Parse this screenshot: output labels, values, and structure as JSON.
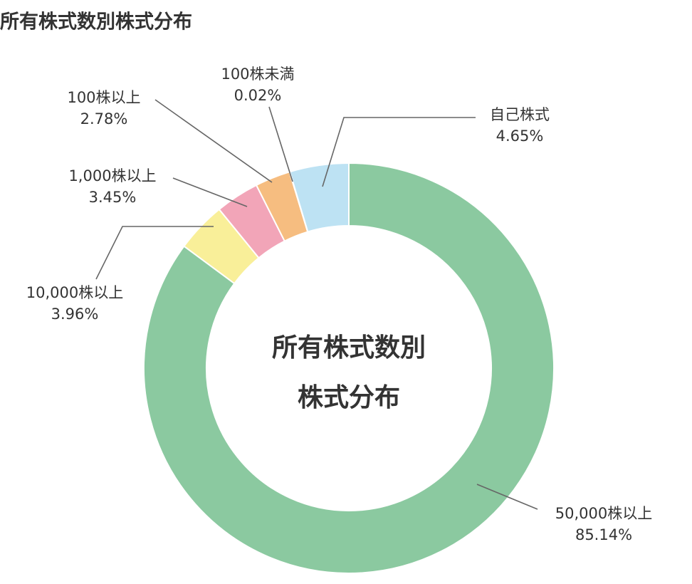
{
  "chart_data": {
    "type": "pie",
    "title": "所有株式数別株式分布",
    "center_text": [
      "所有株式数別",
      "株式分布"
    ],
    "categories": [
      "50,000株以上",
      "10,000株以上",
      "1,000株以上",
      "100株以上",
      "100株未満",
      "自己株式"
    ],
    "values": [
      85.14,
      3.96,
      3.45,
      2.78,
      0.02,
      4.65
    ],
    "value_labels": [
      "85.14%",
      "3.96%",
      "3.45%",
      "2.78%",
      "0.02%",
      "4.65%"
    ],
    "colors": [
      "#8bc9a0",
      "#f9ef99",
      "#f2a5b8",
      "#f6bd80",
      "#c9c9c9",
      "#bde2f3"
    ]
  }
}
